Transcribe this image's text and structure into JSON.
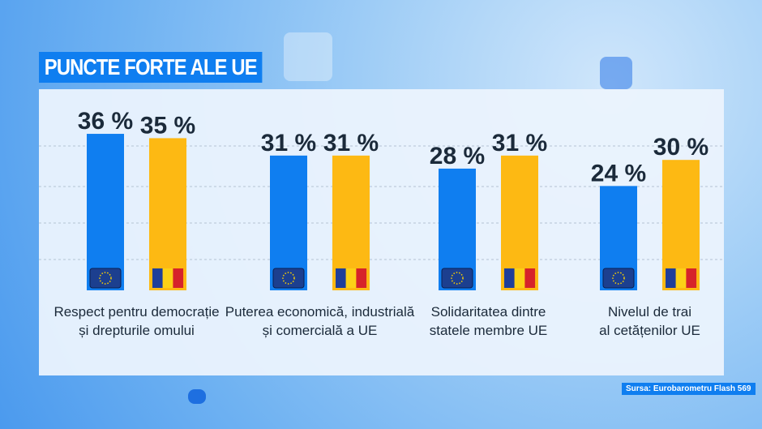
{
  "title": "PUNCTE FORTE ALE UE",
  "source": "Sursa: Eurobarometru Flash 569",
  "colors": {
    "eu": "#0f7ef0",
    "ro": "#fdb913",
    "title_bg": "#0f7ef0"
  },
  "chart_data": {
    "type": "bar",
    "title": "PUNCTE FORTE ALE UE",
    "categories": [
      [
        "Respect pentru democrație",
        "și drepturile omului"
      ],
      [
        "Puterea economică, industrială",
        "și comercială a UE"
      ],
      [
        "Solidaritatea dintre",
        "statele membre UE"
      ],
      [
        "Nivelul de trai",
        "al cetățenilor UE"
      ]
    ],
    "series": [
      {
        "icon": "eu-flag-icon",
        "values": [
          36,
          31,
          28,
          24
        ],
        "labels": [
          "36 %",
          "31 %",
          "28 %",
          "24 %"
        ]
      },
      {
        "icon": "romania-flag-icon",
        "values": [
          35,
          31,
          31,
          30
        ],
        "labels": [
          "35 %",
          "31 %",
          "31 %",
          "30 %"
        ]
      }
    ],
    "ylim": [
      0,
      40
    ],
    "grid": true
  }
}
